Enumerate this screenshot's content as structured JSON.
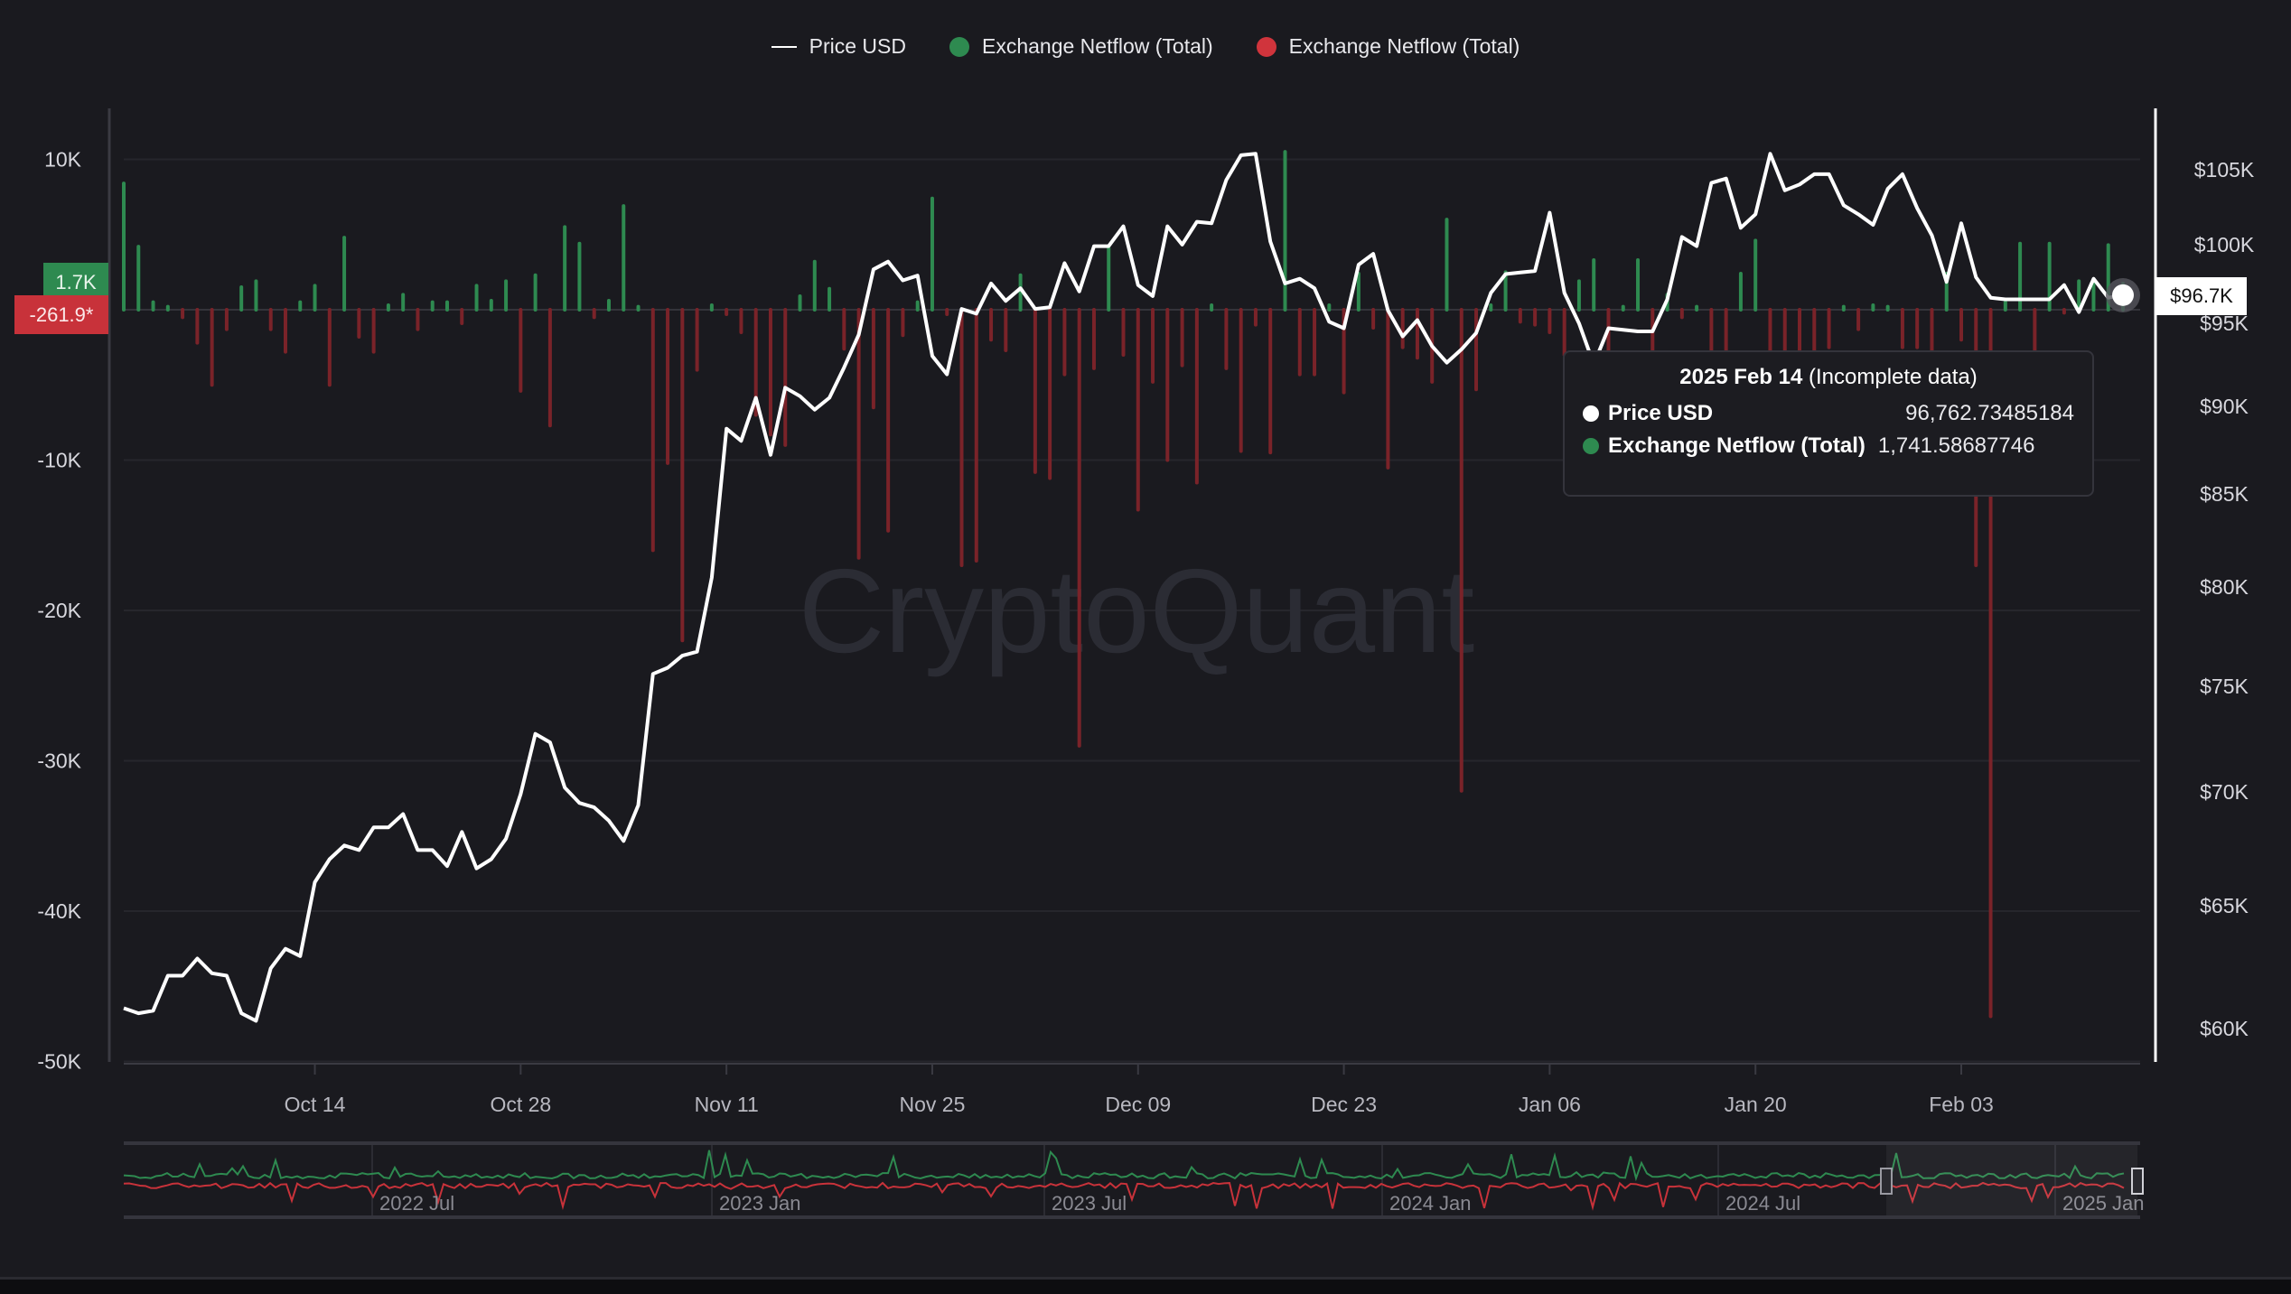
{
  "legend": {
    "items": [
      {
        "label": "Price USD",
        "color": "#ffffff",
        "marker": "line"
      },
      {
        "label": "Exchange Netflow (Total)",
        "color": "#2e8a50",
        "marker": "dot"
      },
      {
        "label": "Exchange Netflow (Total)",
        "color": "#d0343c",
        "marker": "dot"
      }
    ]
  },
  "watermark": "CryptoQuant",
  "tooltip": {
    "date": "2025 Feb 14",
    "note": "(Incomplete data)",
    "rows": [
      {
        "name": "Price USD",
        "value": "96,762.73485184",
        "color": "#ffffff"
      },
      {
        "name": "Exchange Netflow (Total)",
        "value": "1,741.58687746",
        "color": "#2e8a50"
      }
    ]
  },
  "badges": {
    "price": "$96.7K",
    "netflow_positive": "1.7K",
    "netflow_negative": "-261.9*"
  },
  "navigator": {
    "labels": [
      "2022 Jul",
      "2023 Jan",
      "2023 Jul",
      "2024 Jan",
      "2024 Jul",
      "2025 Jan"
    ]
  },
  "colors": {
    "background": "#1a1a1f",
    "positive": "#2e8a50",
    "negative": "#7a2329",
    "price": "#ffffff",
    "grid": "#2a2a30"
  },
  "chart_data": {
    "type": "bar+line",
    "x_start": "2024-10-01",
    "x_end": "2025-02-14",
    "x_interval": "daily",
    "x_tick_labels": [
      "Oct 14",
      "Oct 28",
      "Nov 11",
      "Nov 25",
      "Dec 09",
      "Dec 23",
      "Jan 06",
      "Jan 20",
      "Feb 03"
    ],
    "x_tick_dates": [
      "2024-10-14",
      "2024-10-28",
      "2024-11-11",
      "2024-11-25",
      "2024-12-09",
      "2024-12-23",
      "2025-01-06",
      "2025-01-20",
      "2025-02-03"
    ],
    "left_axis": {
      "ylim": [
        -50000,
        10000
      ],
      "ticks": [
        10000,
        0,
        -10000,
        -20000,
        -30000,
        -40000,
        -50000
      ],
      "tick_labels": [
        "10K",
        "",
        "-10K",
        "-20K",
        "-30K",
        "-40K",
        "-50K"
      ],
      "grid": true
    },
    "right_axis": {
      "scale": "log",
      "ylim": [
        60000,
        105000
      ],
      "ticks": [
        105000,
        100000,
        95000,
        90000,
        85000,
        80000,
        75000,
        70000,
        65000,
        60000
      ],
      "tick_labels": [
        "$105K",
        "$100K",
        "$95K",
        "$90K",
        "$85K",
        "$80K",
        "$75K",
        "$70K",
        "$65K",
        "$60K"
      ]
    },
    "series": [
      {
        "name": "Price USD",
        "type": "line",
        "axis": "right",
        "values": [
          60800,
          60600,
          60700,
          62100,
          62100,
          62800,
          62200,
          62100,
          60600,
          60300,
          62400,
          63200,
          62900,
          66000,
          67000,
          67600,
          67400,
          68400,
          68400,
          69000,
          67400,
          67400,
          66700,
          68200,
          66600,
          67000,
          67900,
          69900,
          72700,
          72300,
          70200,
          69500,
          69300,
          68700,
          67800,
          69400,
          75600,
          75900,
          76500,
          76700,
          80500,
          88700,
          88000,
          90500,
          87200,
          91100,
          90600,
          89800,
          90500,
          92300,
          94300,
          98400,
          98900,
          97700,
          98000,
          93000,
          91900,
          95900,
          95600,
          97500,
          96400,
          97200,
          95900,
          96000,
          98800,
          97000,
          99900,
          99900,
          101200,
          97400,
          96700,
          101200,
          100000,
          101500,
          101400,
          104300,
          106000,
          106100,
          100200,
          97500,
          97800,
          97200,
          95100,
          94700,
          98700,
          99400,
          95800,
          94200,
          95200,
          93600,
          92600,
          93400,
          94400,
          96900,
          98100,
          98200,
          98300,
          102100,
          96900,
          95000,
          92500,
          94700,
          94600,
          94500,
          94500,
          96500,
          100500,
          99900,
          104100,
          104400,
          101100,
          102000,
          106100,
          103600,
          104000,
          104700,
          104700,
          102600,
          102000,
          101300,
          103700,
          104700,
          102400,
          100600,
          97600,
          101400,
          97900,
          96600,
          96500,
          96500,
          96500,
          96500,
          97400,
          95700,
          97800,
          96600,
          96762.73485184
        ]
      },
      {
        "name": "Exchange Netflow (Total)",
        "type": "bar",
        "axis": "left",
        "values": [
          8400,
          4200,
          500,
          200,
          -500,
          -2200,
          -5000,
          -1300,
          1500,
          1900,
          -1300,
          -2800,
          500,
          1600,
          -5000,
          4800,
          -1800,
          -2800,
          300,
          1000,
          -1300,
          500,
          500,
          -900,
          1600,
          600,
          1900,
          -5400,
          2300,
          -7700,
          5500,
          4400,
          -500,
          600,
          6900,
          200,
          -16000,
          -10200,
          -22000,
          -4000,
          300,
          -300,
          -1500,
          -7000,
          -8300,
          -9000,
          900,
          3200,
          1400,
          -2600,
          -16500,
          -6500,
          -14700,
          -1700,
          500,
          7400,
          -300,
          -17000,
          -16700,
          -2000,
          -2700,
          2300,
          -10800,
          -11200,
          -4300,
          -29000,
          -3900,
          4100,
          -3000,
          -13300,
          -4800,
          -10000,
          -3700,
          -11500,
          300,
          -3900,
          -9400,
          -1000,
          -9500,
          10500,
          -4300,
          -4300,
          300,
          -5500,
          2400,
          -1200,
          -10500,
          -2500,
          -3200,
          -4800,
          6000,
          -32000,
          -5300,
          300,
          2500,
          -800,
          -1000,
          -1500,
          -3000,
          1900,
          3300,
          -3300,
          200,
          3300,
          -4000,
          1000,
          -500,
          200,
          -12300,
          -3000,
          2400,
          4600,
          -3500,
          -6800,
          -3500,
          -5000,
          -2500,
          200,
          -1300,
          300,
          200,
          -2500,
          -2500,
          -2800,
          2400,
          -2000,
          -17000,
          -47000,
          500,
          4400,
          -2700,
          4400,
          -200,
          1900,
          1700,
          4300,
          1741.58687746
        ]
      }
    ]
  }
}
